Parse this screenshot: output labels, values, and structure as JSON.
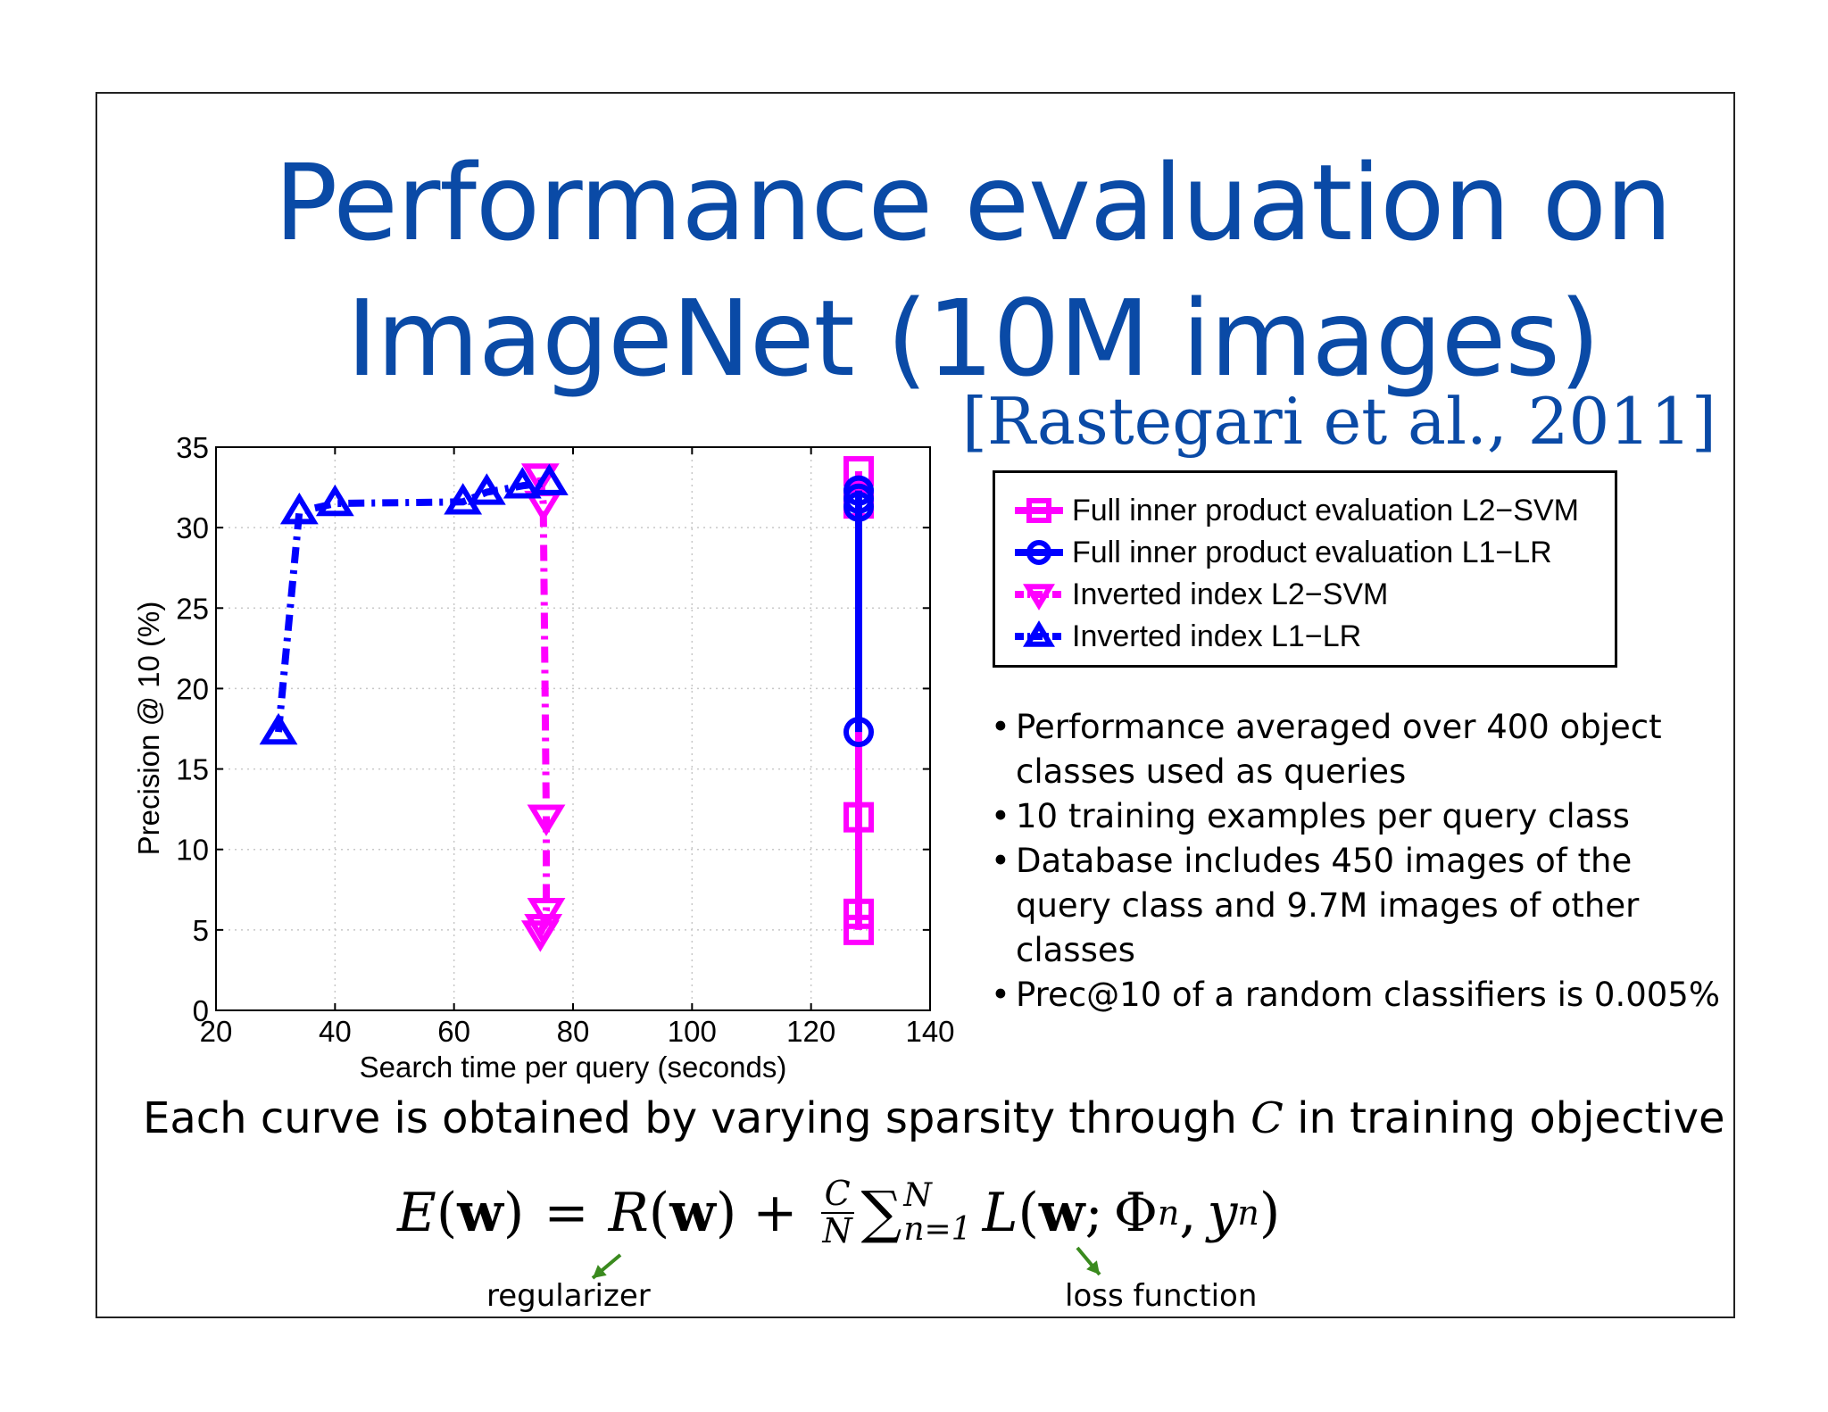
{
  "slide": {
    "title_line1": "Performance evaluation on",
    "title_line2": "ImageNet (10M images)",
    "citation": "[Rastegari et al., 2011]"
  },
  "chart_data": {
    "type": "line",
    "xlabel": "Search time per query (seconds)",
    "ylabel": "Precision @ 10 (%)",
    "xlim": [
      20,
      140
    ],
    "ylim": [
      0,
      35
    ],
    "x_ticks": [
      20,
      40,
      60,
      80,
      100,
      120,
      140
    ],
    "y_ticks": [
      0,
      5,
      10,
      15,
      20,
      25,
      30,
      35
    ],
    "grid": true,
    "legend_position": "right of plot",
    "series": [
      {
        "name": "Full inner product evaluation L2−SVM",
        "color": "#ff00ff",
        "marker": "square",
        "line_style": "solid",
        "x": [
          128,
          128,
          128,
          128,
          128
        ],
        "y": [
          5,
          6,
          12,
          31.5,
          33.5
        ]
      },
      {
        "name": "Full inner product evaluation L1−LR",
        "color": "#0000ff",
        "marker": "circle",
        "line_style": "solid",
        "x": [
          128,
          128,
          128,
          128
        ],
        "y": [
          17.3,
          31.3,
          31.8,
          32.3
        ]
      },
      {
        "name": "Inverted index L2−SVM",
        "color": "#ff00ff",
        "marker": "triangle-down",
        "line_style": "dash-dot",
        "x": [
          74.5,
          75,
          75.5,
          75.5,
          75,
          74.5
        ],
        "y": [
          4.8,
          5.2,
          6.2,
          12,
          31.5,
          33.2
        ]
      },
      {
        "name": "Inverted index L1−LR",
        "color": "#0000ff",
        "marker": "triangle-up",
        "line_style": "dash-dot",
        "x": [
          30.5,
          34,
          40,
          61.5,
          65.5,
          71.5,
          76
        ],
        "y": [
          17.3,
          31,
          31.5,
          31.6,
          32.2,
          32.6,
          32.8
        ]
      }
    ]
  },
  "bullets": [
    "Performance averaged over 400 object classes used as queries",
    "10 training examples per query class",
    "Database includes 450 images of the query class and 9.7M images of other classes",
    "Prec@10 of a random classifiers is 0.005%"
  ],
  "caption": {
    "text_before": "Each curve is obtained by varying sparsity through ",
    "variable": "C",
    "text_after": " in training objective"
  },
  "equation": {
    "lhs_fn": "E",
    "arg": "w",
    "equals": "=",
    "reg_fn": "R",
    "plus": "+",
    "frac_num": "C",
    "frac_den": "N",
    "sum_symbol": "∑",
    "sum_upper": "N",
    "sum_lower": "n=1",
    "loss_fn": "L",
    "loss_args_phi": "Φ",
    "loss_args_y": "y",
    "sub_n": "n"
  },
  "annotations": {
    "regularizer": "regularizer",
    "loss": "loss function",
    "arrow_color": "#3a8a1e"
  },
  "colors": {
    "title": "#0a4aa6",
    "magenta": "#ff00ff",
    "blue": "#0000ff"
  }
}
